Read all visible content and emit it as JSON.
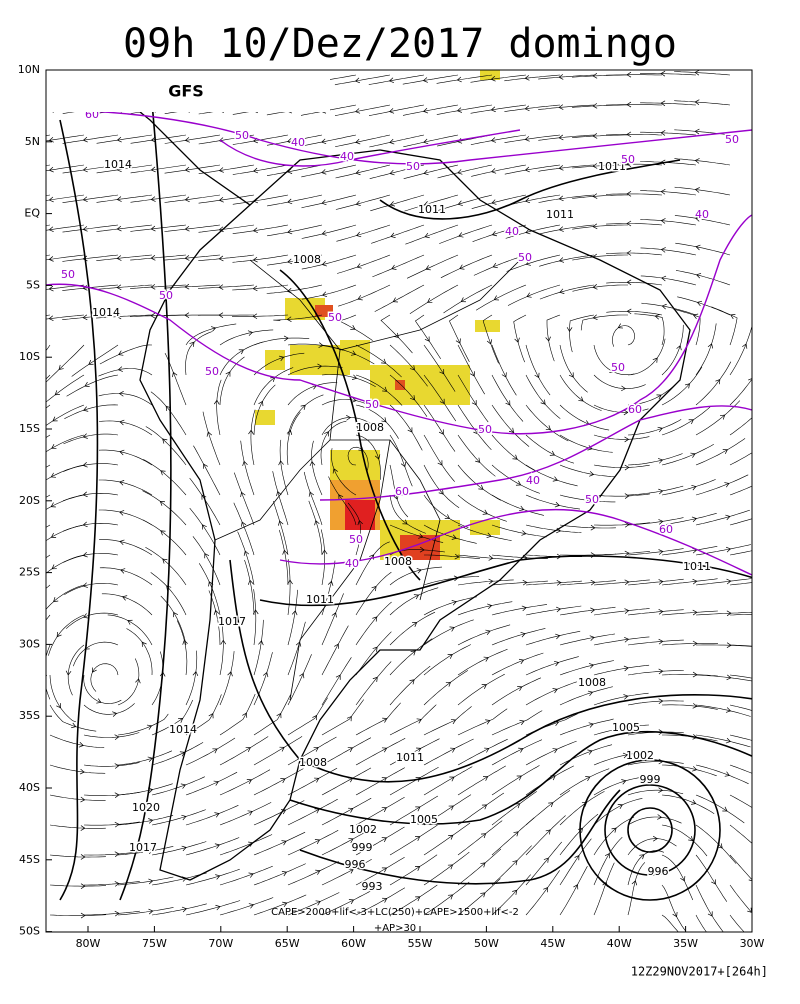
{
  "header": {
    "title": "09h 10/Dez/2017 domingo"
  },
  "map": {
    "model": "GFS",
    "lat_labels": [
      "10N",
      "5N",
      "EQ",
      "5S",
      "10S",
      "15S",
      "20S",
      "25S",
      "30S",
      "35S",
      "40S",
      "45S",
      "50S"
    ],
    "lon_labels": [
      "80W",
      "75W",
      "70W",
      "65W",
      "60W",
      "55W",
      "50W",
      "45W",
      "40W",
      "35W",
      "30W"
    ],
    "isobar_labels": [
      1014,
      1011,
      1011,
      1008,
      1014,
      1008,
      1008,
      1011,
      1017,
      1011,
      1008,
      1005,
      1002,
      999,
      1014,
      1011,
      1008,
      1005,
      1020,
      1002,
      1017,
      999,
      996,
      993,
      996,
      1011
    ],
    "thickness_labels": [
      60,
      50,
      40,
      40,
      50,
      50,
      50,
      40,
      40,
      50,
      50,
      50,
      50,
      50,
      50,
      50,
      50,
      60,
      40,
      60,
      50,
      60,
      50,
      40
    ],
    "legend_note": [
      "CAPE>2000+lif<-3+LC(250)+CAPE>1500+lif<-2",
      "+AP>30"
    ]
  },
  "footer": {
    "run": "12Z29NOV2017+[264h]"
  }
}
